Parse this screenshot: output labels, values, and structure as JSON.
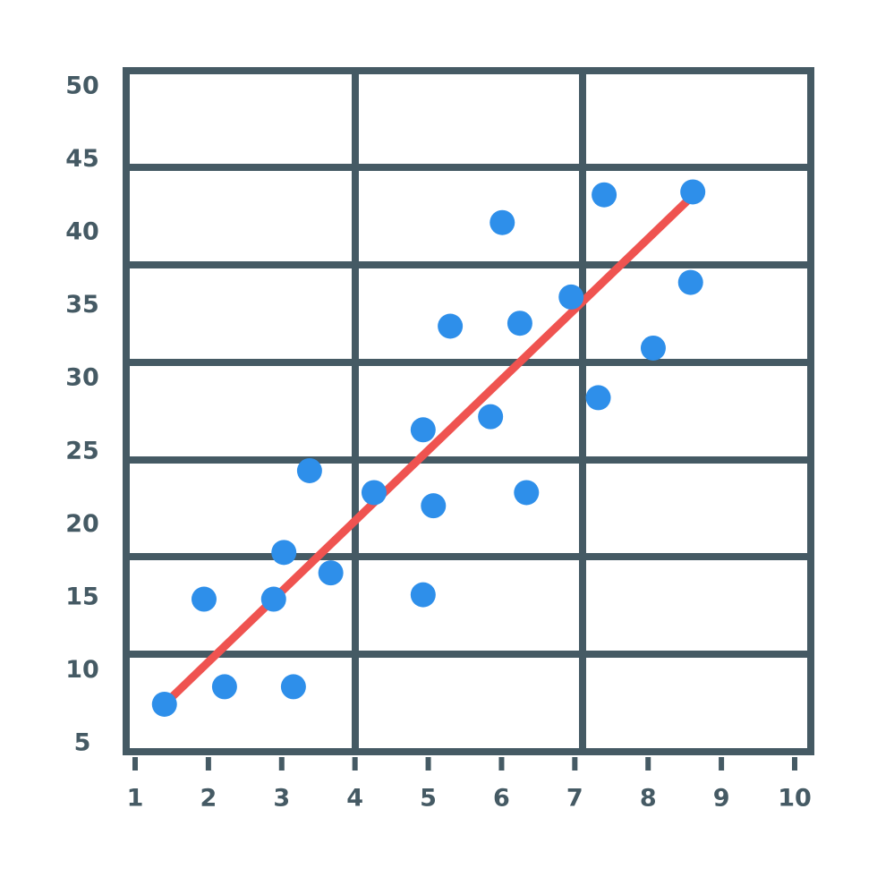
{
  "chart_data": {
    "type": "scatter",
    "x": [
      1.4,
      1.94,
      2.22,
      2.89,
      3.03,
      3.16,
      3.38,
      3.67,
      4.26,
      4.93,
      5.07,
      4.93,
      5.3,
      5.85,
      6.01,
      6.25,
      6.34,
      6.95,
      7.32,
      7.4,
      8.07,
      8.58,
      8.61
    ],
    "y": [
      7.7,
      14.9,
      8.9,
      14.9,
      18.1,
      8.9,
      23.7,
      16.7,
      22.2,
      26.5,
      21.3,
      15.2,
      33.6,
      27.4,
      40.7,
      33.8,
      22.2,
      35.6,
      28.7,
      42.6,
      32.1,
      36.6,
      42.8
    ],
    "color": "#2e8fea",
    "trend": {
      "x": [
        1.4,
        8.6
      ],
      "y": [
        7.7,
        42.5
      ],
      "color": "#ef5350"
    },
    "xlim": [
      1,
      10
    ],
    "xticks": [
      1,
      2,
      3,
      4,
      5,
      6,
      7,
      8,
      9,
      10
    ],
    "ylim": [
      5,
      50
    ],
    "yticks": [
      5,
      10,
      15,
      20,
      25,
      30,
      35,
      40,
      45,
      50
    ]
  }
}
